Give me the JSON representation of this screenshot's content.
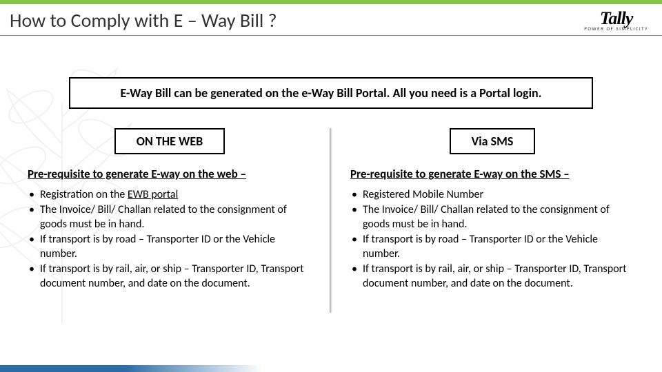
{
  "colors": {
    "top_bar": "#8bc34a",
    "footer_bar": "#2b6ca3",
    "border": "#000000",
    "text": "#333333",
    "divider_from": "#999999",
    "divider_to": "#ffffff",
    "leaf_watermark": "#cccccc"
  },
  "header": {
    "title": "How to Comply with E – Way Bill ?",
    "logo_main": "Tally",
    "logo_tagline": "POWER OF SIMPLICITY"
  },
  "intro": "E-Way Bill can be generated on the e-Way Bill Portal.  All you need is a Portal login.",
  "left": {
    "label": "ON THE WEB",
    "subhead": "Pre-requisite to generate E-way on the web",
    "subhead_suffix": " –",
    "bullets": [
      {
        "prefix": "Registration on the ",
        "link": "EWB portal",
        "suffix": ""
      },
      {
        "text": "The Invoice/ Bill/ Challan related to the consignment of goods must be in hand."
      },
      {
        "text": "If transport is by road – Transporter ID or the Vehicle number."
      },
      {
        "text": "If transport is by rail, air, or ship – Transporter ID, Transport document number, and date on the document."
      }
    ]
  },
  "right": {
    "label": "Via SMS",
    "subhead": "Pre-requisite to generate E-way on the SMS",
    "subhead_suffix": " –",
    "bullets": [
      {
        "text": "Registered Mobile Number"
      },
      {
        "text": "The Invoice/ Bill/ Challan related to the consignment of goods must be in hand."
      },
      {
        "text": "If transport is by road – Transporter ID or the Vehicle number."
      },
      {
        "text": "If transport is by rail, air, or ship – Transporter ID, Transport document number, and date on the document."
      }
    ]
  }
}
